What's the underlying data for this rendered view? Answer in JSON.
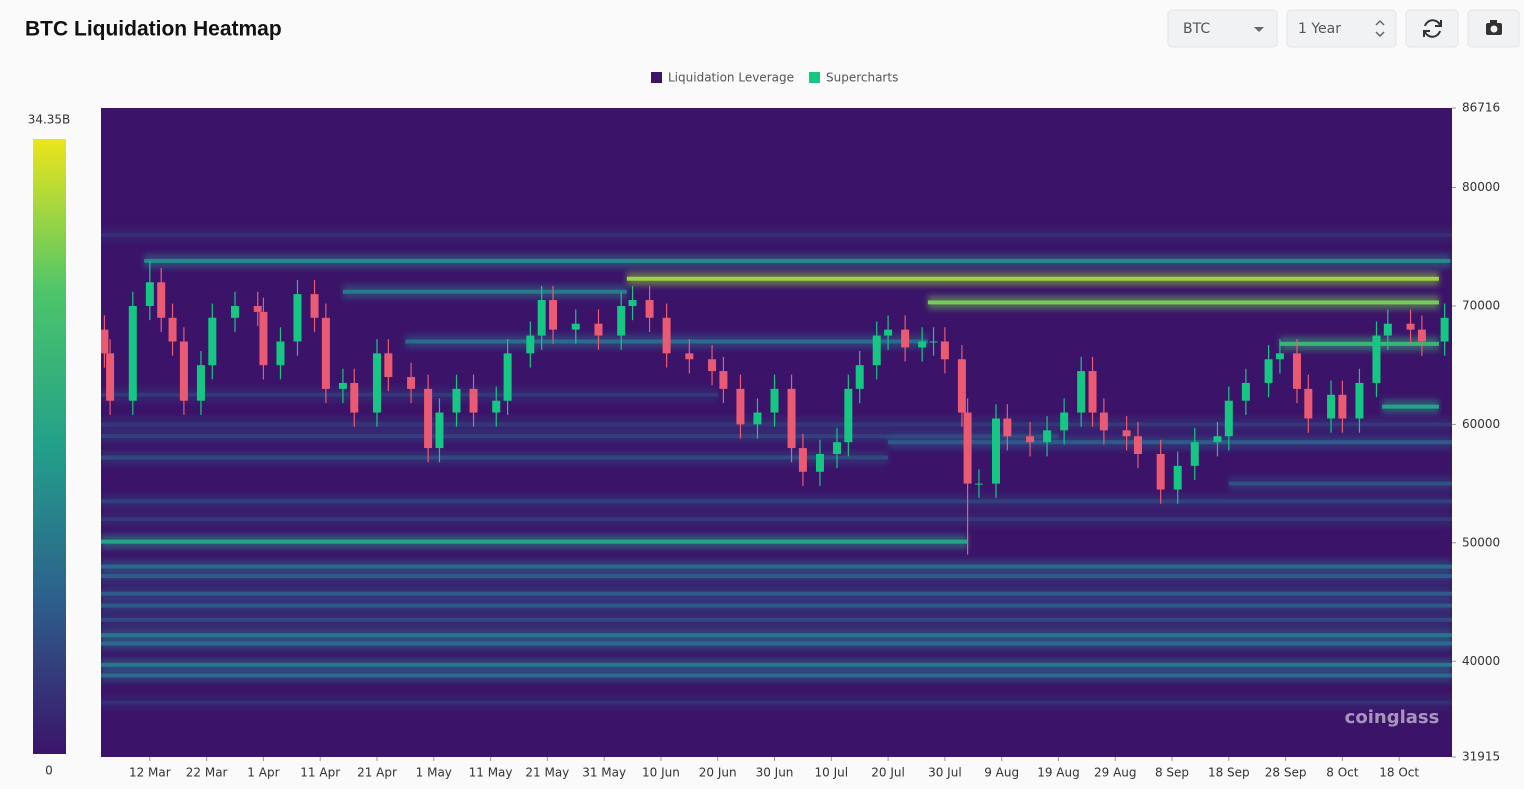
{
  "header": {
    "title": "BTC Liquidation Heatmap",
    "symbol": "BTC",
    "range": "1 Year"
  },
  "chart_data": {
    "type": "heatmap",
    "colorscale": [
      "#3b1469",
      "#2d5f8c",
      "#22a08a",
      "#4cc56a",
      "#ece51b"
    ],
    "colorbar": {
      "max": {
        "value": 34.35,
        "label": "34.35B"
      },
      "min": 0
    },
    "xlim": [
      -8.6,
      229.3
    ],
    "xticks": [
      {
        "value": 0,
        "label": "12 Mar"
      },
      {
        "value": 10,
        "label": "22 Mar"
      },
      {
        "value": 20,
        "label": "1 Apr"
      },
      {
        "value": 30,
        "label": "11 Apr"
      },
      {
        "value": 40,
        "label": "21 Apr"
      },
      {
        "value": 50,
        "label": "1 May"
      },
      {
        "value": 60,
        "label": "11 May"
      },
      {
        "value": 70,
        "label": "21 May"
      },
      {
        "value": 80,
        "label": "31 May"
      },
      {
        "value": 90,
        "label": "10 Jun"
      },
      {
        "value": 100,
        "label": "20 Jun"
      },
      {
        "value": 110,
        "label": "30 Jun"
      },
      {
        "value": 120,
        "label": "10 Jul"
      },
      {
        "value": 130,
        "label": "20 Jul"
      },
      {
        "value": 140,
        "label": "30 Jul"
      },
      {
        "value": 150,
        "label": "9 Aug"
      },
      {
        "value": 160,
        "label": "19 Aug"
      },
      {
        "value": 170,
        "label": "29 Aug"
      },
      {
        "value": 180,
        "label": "8 Sep"
      },
      {
        "value": 190,
        "label": "18 Sep"
      },
      {
        "value": 200,
        "label": "28 Sep"
      },
      {
        "value": 210,
        "label": "8 Oct"
      },
      {
        "value": 220,
        "label": "18 Oct"
      }
    ],
    "ylim": [
      31915,
      86716
    ],
    "yticks": [
      86716,
      80000,
      70000,
      60000,
      50000,
      40000,
      31915
    ],
    "watermark": "coinglass",
    "series": [
      {
        "name": "Liquidation Leverage",
        "type": "heatmap",
        "color": "#3b1469",
        "bands": [
          {
            "price": 76000,
            "start": -8.6,
            "end": 229.3,
            "value": 3
          },
          {
            "price": 73800,
            "start": -1,
            "end": 229,
            "value": 14
          },
          {
            "price": 72300,
            "start": 84,
            "end": 227,
            "value": 30
          },
          {
            "price": 71200,
            "start": 34,
            "end": 84,
            "value": 12
          },
          {
            "price": 70300,
            "start": 137,
            "end": 227,
            "value": 28
          },
          {
            "price": 67000,
            "start": 45,
            "end": 137,
            "value": 10
          },
          {
            "price": 66800,
            "start": 199,
            "end": 227,
            "value": 22
          },
          {
            "price": 62500,
            "start": -8.6,
            "end": 100,
            "value": 4
          },
          {
            "price": 61500,
            "start": 217,
            "end": 227,
            "value": 18
          },
          {
            "price": 60000,
            "start": -8.6,
            "end": 229.3,
            "value": 4
          },
          {
            "price": 59000,
            "start": -8.6,
            "end": 160,
            "value": 5
          },
          {
            "price": 58500,
            "start": 130,
            "end": 229.3,
            "value": 8
          },
          {
            "price": 57200,
            "start": -8.6,
            "end": 130,
            "value": 6
          },
          {
            "price": 55000,
            "start": 190,
            "end": 229.3,
            "value": 7
          },
          {
            "price": 53500,
            "start": -8.6,
            "end": 229.3,
            "value": 5
          },
          {
            "price": 52000,
            "start": -8.6,
            "end": 229.3,
            "value": 4
          },
          {
            "price": 50100,
            "start": -8.6,
            "end": 144,
            "value": 18
          },
          {
            "price": 48000,
            "start": -8.6,
            "end": 229.3,
            "value": 10
          },
          {
            "price": 47200,
            "start": -8.6,
            "end": 229.3,
            "value": 8
          },
          {
            "price": 45700,
            "start": -8.6,
            "end": 229.3,
            "value": 8
          },
          {
            "price": 44700,
            "start": -8.6,
            "end": 229.3,
            "value": 8
          },
          {
            "price": 43500,
            "start": -8.6,
            "end": 229.3,
            "value": 6
          },
          {
            "price": 42200,
            "start": -8.6,
            "end": 229.3,
            "value": 12
          },
          {
            "price": 41500,
            "start": -8.6,
            "end": 229.3,
            "value": 10
          },
          {
            "price": 39700,
            "start": -8.6,
            "end": 229.3,
            "value": 12
          },
          {
            "price": 38800,
            "start": -8.6,
            "end": 229.3,
            "value": 10
          },
          {
            "price": 36500,
            "start": -8.6,
            "end": 229.3,
            "value": 3
          }
        ]
      },
      {
        "name": "Supercharts",
        "type": "candlestick",
        "color": "#16c784",
        "down_color": "#ea5a72",
        "x": [
          -8,
          -7,
          -3,
          0,
          2,
          4,
          6,
          9,
          11,
          15,
          19,
          20,
          23,
          26,
          29,
          31,
          34,
          36,
          40,
          42,
          46,
          49,
          51,
          54,
          57,
          61,
          63,
          67,
          69,
          71,
          75,
          79,
          83,
          85,
          88,
          91,
          95,
          99,
          101,
          104,
          107,
          110,
          113,
          115,
          118,
          121,
          123,
          125,
          128,
          130,
          133,
          136,
          138,
          140,
          143,
          144,
          146,
          149,
          151,
          155,
          158,
          161,
          164,
          166,
          168,
          172,
          174,
          178,
          181,
          184,
          188,
          190,
          193,
          197,
          199,
          202,
          204,
          208,
          210,
          213,
          216,
          218,
          222,
          224,
          228
        ],
        "open": [
          68000,
          66000,
          62000,
          70000,
          72000,
          69000,
          67000,
          62000,
          65000,
          69000,
          70000,
          69500,
          65000,
          67000,
          71000,
          69000,
          63000,
          63500,
          61000,
          66000,
          64000,
          63000,
          58000,
          61000,
          63000,
          61000,
          62000,
          66000,
          67500,
          70500,
          68000,
          68500,
          67500,
          70000,
          70500,
          69000,
          66000,
          65500,
          64500,
          63000,
          60000,
          61000,
          63000,
          58000,
          56000,
          57500,
          58500,
          63000,
          65000,
          67500,
          68000,
          66500,
          67000,
          67000,
          65500,
          61000,
          55000,
          55000,
          60500,
          59000,
          58500,
          59500,
          61000,
          64500,
          61000,
          59500,
          59000,
          57500,
          54500,
          56500,
          58500,
          59000,
          62000,
          63500,
          65500,
          66000,
          63000,
          60500,
          62500,
          60500,
          63500,
          67500,
          68500,
          68000,
          67000
        ],
        "high": [
          69200,
          67200,
          71200,
          73800,
          73200,
          70200,
          68200,
          66200,
          70200,
          71200,
          71200,
          70700,
          68200,
          72200,
          72200,
          70200,
          64700,
          64700,
          67200,
          67200,
          65200,
          64200,
          62200,
          64200,
          64200,
          63200,
          67200,
          68700,
          71700,
          71700,
          69700,
          69700,
          71200,
          71700,
          71700,
          70200,
          67200,
          66700,
          65700,
          64200,
          62200,
          64200,
          64200,
          59200,
          58700,
          59700,
          64200,
          66200,
          68700,
          69200,
          69200,
          68200,
          68200,
          68200,
          66700,
          62200,
          56200,
          61700,
          61700,
          60200,
          60700,
          62200,
          65700,
          65700,
          62200,
          60700,
          60200,
          58700,
          57700,
          59700,
          60200,
          63200,
          64700,
          66700,
          67200,
          67200,
          64200,
          63700,
          63700,
          64700,
          68700,
          69700,
          69700,
          69200,
          70200
        ],
        "low": [
          64800,
          60800,
          60800,
          68800,
          67800,
          65800,
          60800,
          60800,
          63800,
          67800,
          68300,
          63800,
          63800,
          65800,
          67800,
          61800,
          61800,
          59800,
          59800,
          62800,
          61800,
          56800,
          56800,
          59800,
          59800,
          59800,
          60800,
          64800,
          66300,
          66800,
          66800,
          66300,
          66300,
          68800,
          67800,
          64800,
          64300,
          63300,
          61800,
          58800,
          58800,
          59800,
          56800,
          54800,
          54800,
          56300,
          57300,
          61800,
          63800,
          66300,
          65300,
          65300,
          65800,
          64300,
          59800,
          49000,
          53800,
          53800,
          57800,
          57300,
          57300,
          58300,
          59800,
          59800,
          58300,
          57800,
          56300,
          53300,
          53300,
          55300,
          57300,
          57800,
          60800,
          62300,
          64300,
          61800,
          59300,
          59300,
          59300,
          59300,
          62300,
          66300,
          66800,
          65800,
          65800
        ],
        "close": [
          66000,
          62000,
          70000,
          72000,
          69000,
          67000,
          62000,
          65000,
          69000,
          70000,
          69500,
          65000,
          67000,
          71000,
          69000,
          63000,
          63500,
          61000,
          66000,
          64000,
          63000,
          58000,
          61000,
          63000,
          61000,
          62000,
          66000,
          67500,
          70500,
          68000,
          68500,
          67500,
          70000,
          70500,
          69000,
          66000,
          65500,
          64500,
          63000,
          60000,
          61000,
          63000,
          58000,
          56000,
          57500,
          58500,
          63000,
          65000,
          67500,
          68000,
          66500,
          67000,
          67000,
          65500,
          61000,
          55000,
          55000,
          60500,
          59000,
          58500,
          59500,
          61000,
          64500,
          61000,
          59500,
          59000,
          57500,
          54500,
          56500,
          58500,
          59000,
          62000,
          63500,
          65500,
          66000,
          63000,
          60500,
          62500,
          60500,
          63500,
          67500,
          68500,
          68000,
          67000,
          69000
        ]
      }
    ]
  }
}
